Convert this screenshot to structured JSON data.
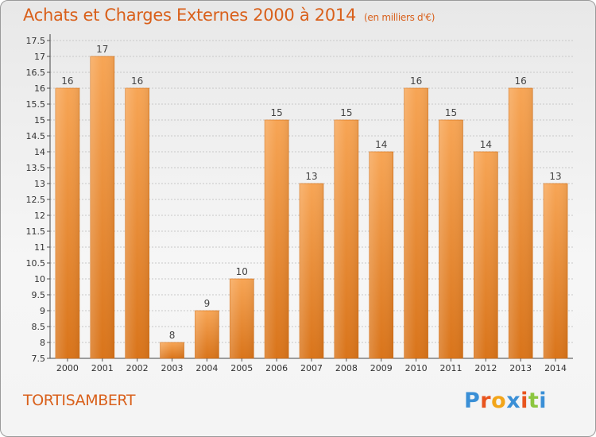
{
  "title": "Achats et Charges Externes 2000 à 2014",
  "subtitle": "(en milliers d'€)",
  "commune": "TORTISAMBERT",
  "logo": {
    "text": "Proxiti",
    "letter_colors": [
      "#3a8fd6",
      "#e8541e",
      "#f2a51a",
      "#3a8fd6",
      "#e8541e",
      "#8cc63f",
      "#3a8fd6"
    ]
  },
  "colors": {
    "accent": "#d9601b",
    "bar_light": "#f7a555",
    "bar_dark": "#d9741a",
    "grid": "#c8c8c8"
  },
  "chart_data": {
    "type": "bar",
    "title": "Achats et Charges Externes 2000 à 2014",
    "subtitle": "(en milliers d'€)",
    "categories": [
      "2000",
      "2001",
      "2002",
      "2003",
      "2004",
      "2005",
      "2006",
      "2007",
      "2008",
      "2009",
      "2010",
      "2011",
      "2012",
      "2013",
      "2014"
    ],
    "values": [
      16,
      17,
      16,
      8,
      9,
      10,
      15,
      13,
      15,
      14,
      16,
      15,
      14,
      16,
      13
    ],
    "ylim": [
      7.5,
      17.5
    ],
    "yticks": [
      "7.5",
      "8",
      "8.5",
      "9",
      "9.5",
      "10",
      "10.5",
      "11",
      "11.5",
      "12",
      "12.5",
      "13",
      "13.5",
      "14",
      "14.5",
      "15",
      "15.5",
      "16",
      "16.5",
      "17",
      "17.5"
    ],
    "grid": true
  }
}
